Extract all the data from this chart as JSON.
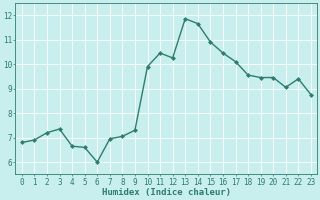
{
  "x": [
    0,
    1,
    2,
    3,
    4,
    5,
    6,
    7,
    8,
    9,
    10,
    11,
    12,
    13,
    14,
    15,
    16,
    17,
    18,
    19,
    20,
    21,
    22,
    23
  ],
  "y": [
    6.8,
    6.9,
    7.2,
    7.35,
    6.65,
    6.6,
    6.0,
    6.95,
    7.05,
    7.3,
    9.9,
    10.45,
    10.25,
    11.85,
    11.65,
    10.9,
    10.45,
    10.1,
    9.55,
    9.45,
    9.45,
    9.05,
    9.4,
    8.75
  ],
  "line_color": "#2e7d6e",
  "marker": "D",
  "marker_size": 2.0,
  "bg_color": "#c8eeee",
  "grid_color": "#ffffff",
  "xlabel": "Humidex (Indice chaleur)",
  "xlim": [
    -0.5,
    23.5
  ],
  "ylim": [
    5.5,
    12.5
  ],
  "yticks": [
    6,
    7,
    8,
    9,
    10,
    11,
    12
  ],
  "xticks": [
    0,
    1,
    2,
    3,
    4,
    5,
    6,
    7,
    8,
    9,
    10,
    11,
    12,
    13,
    14,
    15,
    16,
    17,
    18,
    19,
    20,
    21,
    22,
    23
  ],
  "line_width": 1.0,
  "font_color": "#2e7d6e",
  "axis_color": "#2e7d6e",
  "tick_fontsize": 5.5,
  "xlabel_fontsize": 6.5,
  "xlabel_fontweight": "bold"
}
